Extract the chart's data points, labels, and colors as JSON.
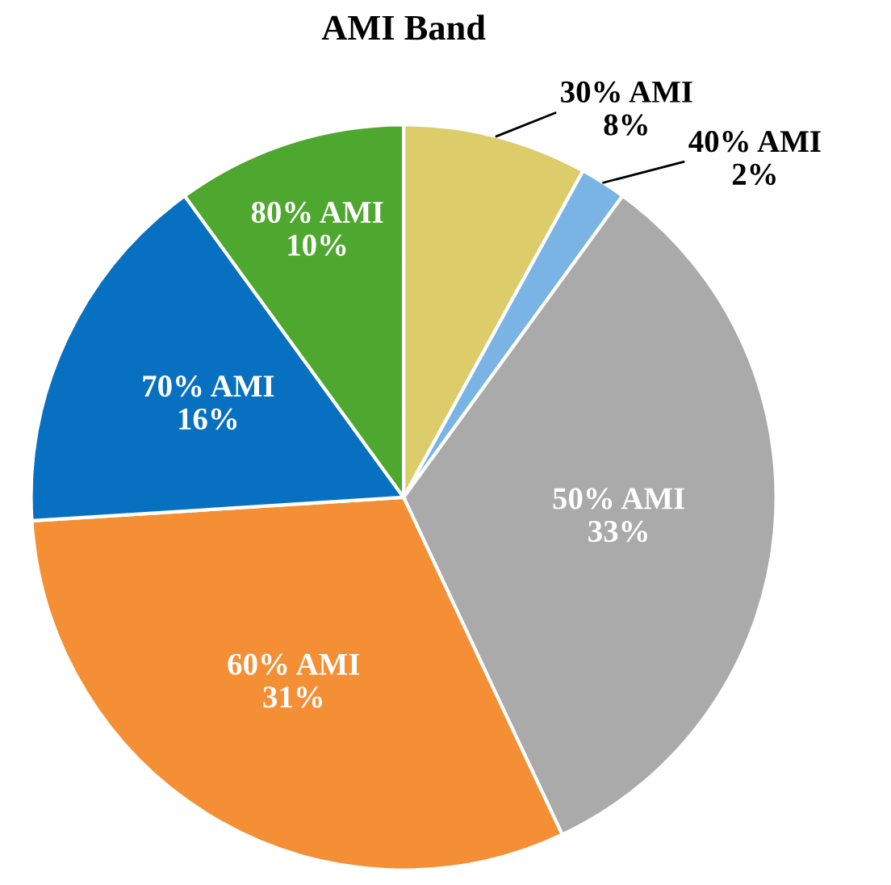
{
  "chart_data": {
    "type": "pie",
    "title": "AMI Band",
    "categories": [
      "30% AMI",
      "40% AMI",
      "50% AMI",
      "60% AMI",
      "70% AMI",
      "80% AMI"
    ],
    "values": [
      8,
      2,
      33,
      31,
      16,
      10
    ],
    "colors": [
      "#dccd6a",
      "#7ab4e4",
      "#aaaaaa",
      "#f58f35",
      "#0870c0",
      "#4ea72e"
    ],
    "value_labels": [
      "8%",
      "2%",
      "33%",
      "31%",
      "16%",
      "10%"
    ],
    "legend": false
  }
}
